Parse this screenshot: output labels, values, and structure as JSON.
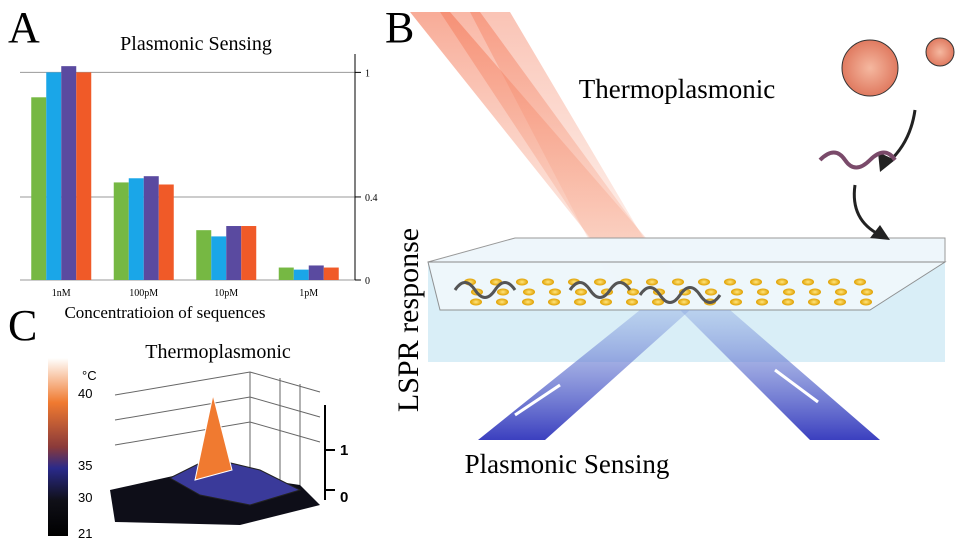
{
  "panels": {
    "a": "A",
    "b": "B",
    "c": "C"
  },
  "chart_data": {
    "type": "bar",
    "title": "Plasmonic Sensing",
    "x_label": "Concentratioion of sequences",
    "categories": [
      "1nM",
      "100pM",
      "10pM",
      "1pM"
    ],
    "series": [
      {
        "color": "#76b843",
        "values": [
          0.88,
          0.47,
          0.24,
          0.06
        ]
      },
      {
        "color": "#1aa6e8",
        "values": [
          1.0,
          0.49,
          0.21,
          0.05
        ]
      },
      {
        "color": "#5a4aa0",
        "values": [
          1.03,
          0.5,
          0.26,
          0.07
        ]
      },
      {
        "color": "#f05a28",
        "values": [
          1.0,
          0.46,
          0.26,
          0.06
        ]
      }
    ],
    "ylim": [
      0,
      1.05
    ],
    "yticks": [
      0,
      0.4,
      1
    ],
    "grid": true
  },
  "illustration": {
    "thermo_label": "Thermoplasmonic",
    "lspr_label": "LSPR response",
    "sensing_label": "Plasmonic Sensing"
  },
  "panel_c": {
    "title": "Thermoplasmonic",
    "colorbar_unit": "°C",
    "colorbar_ticks": [
      40,
      35,
      30,
      21
    ],
    "z_ticks": [
      1,
      0
    ]
  }
}
